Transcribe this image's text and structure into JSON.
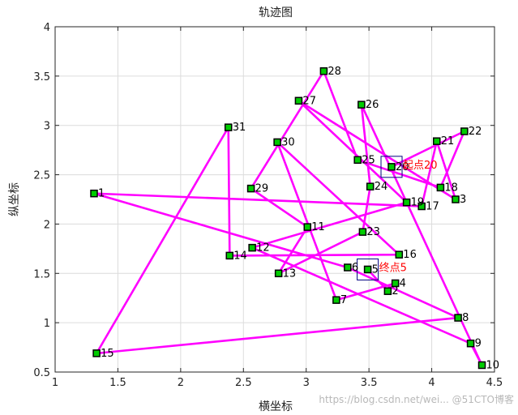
{
  "chart_data": {
    "type": "line",
    "title": "轨迹图",
    "xlabel": "横坐标",
    "ylabel": "纵坐标",
    "xlim": [
      1,
      4.5
    ],
    "ylim": [
      0.5,
      4
    ],
    "xticks": [
      1,
      1.5,
      2,
      2.5,
      3,
      3.5,
      4,
      4.5
    ],
    "yticks": [
      0.5,
      1,
      1.5,
      2,
      2.5,
      3,
      3.5,
      4
    ],
    "grid": true,
    "line_color": "#ff00ff",
    "marker_color": "#00cc00",
    "marker_edge": "#000000",
    "annotation_color": "#ff0000",
    "box_color": "#000080",
    "points": [
      {
        "id": 1,
        "x": 1.31,
        "y": 2.31
      },
      {
        "id": 2,
        "x": 3.65,
        "y": 1.32
      },
      {
        "id": 3,
        "x": 4.19,
        "y": 2.25
      },
      {
        "id": 4,
        "x": 3.71,
        "y": 1.4
      },
      {
        "id": 5,
        "x": 3.49,
        "y": 1.54
      },
      {
        "id": 6,
        "x": 3.33,
        "y": 1.56
      },
      {
        "id": 7,
        "x": 3.24,
        "y": 1.23
      },
      {
        "id": 8,
        "x": 4.21,
        "y": 1.05
      },
      {
        "id": 9,
        "x": 4.31,
        "y": 0.79
      },
      {
        "id": 10,
        "x": 4.4,
        "y": 0.57
      },
      {
        "id": 11,
        "x": 3.01,
        "y": 1.97
      },
      {
        "id": 12,
        "x": 2.57,
        "y": 1.76
      },
      {
        "id": 13,
        "x": 2.78,
        "y": 1.5
      },
      {
        "id": 14,
        "x": 2.39,
        "y": 1.68
      },
      {
        "id": 15,
        "x": 1.33,
        "y": 0.69
      },
      {
        "id": 16,
        "x": 3.74,
        "y": 1.69
      },
      {
        "id": 17,
        "x": 3.92,
        "y": 2.18
      },
      {
        "id": 18,
        "x": 4.07,
        "y": 2.37
      },
      {
        "id": 19,
        "x": 3.8,
        "y": 2.22
      },
      {
        "id": 20,
        "x": 3.68,
        "y": 2.58
      },
      {
        "id": 21,
        "x": 4.04,
        "y": 2.84
      },
      {
        "id": 22,
        "x": 4.26,
        "y": 2.94
      },
      {
        "id": 23,
        "x": 3.45,
        "y": 1.92
      },
      {
        "id": 24,
        "x": 3.51,
        "y": 2.38
      },
      {
        "id": 25,
        "x": 3.41,
        "y": 2.65
      },
      {
        "id": 26,
        "x": 3.44,
        "y": 3.21
      },
      {
        "id": 27,
        "x": 2.94,
        "y": 3.25
      },
      {
        "id": 28,
        "x": 3.14,
        "y": 3.55
      },
      {
        "id": 29,
        "x": 2.56,
        "y": 2.36
      },
      {
        "id": 30,
        "x": 2.77,
        "y": 2.83
      },
      {
        "id": 31,
        "x": 2.38,
        "y": 2.98
      }
    ],
    "route": [
      20,
      22,
      18,
      25,
      28,
      29,
      11,
      13,
      23,
      24,
      26,
      10,
      9,
      12,
      19,
      27,
      3,
      21,
      17,
      1,
      6,
      8,
      15,
      31,
      14,
      16,
      30,
      7,
      4,
      2,
      5
    ],
    "annotations": [
      {
        "point": 20,
        "text": "起点20"
      },
      {
        "point": 5,
        "text": "终点5"
      }
    ]
  },
  "watermark": "https://blog.csdn.net/wei... @51CTO博客"
}
